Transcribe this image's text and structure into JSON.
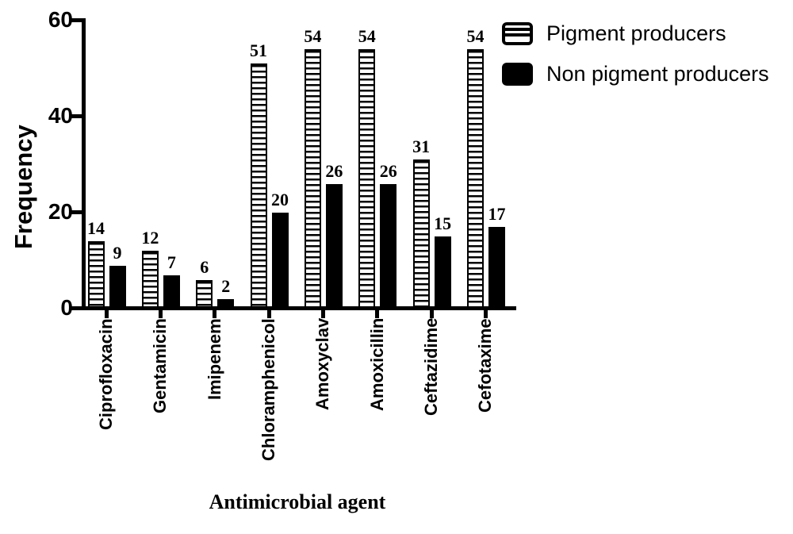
{
  "chart_data": {
    "type": "bar",
    "title": "",
    "xlabel": "Antimicrobial agent",
    "ylabel": "Frequency",
    "ylim": [
      0,
      60
    ],
    "yticks": [
      0,
      20,
      40,
      60
    ],
    "grid": false,
    "legend_position": "top-right",
    "bar_value_labels": true,
    "categories": [
      "Ciprofloxacin",
      "Gentamicin",
      "Imipenem",
      "Chloramphenicol",
      "Amoxyclav",
      "Amoxicillin",
      "Ceftazidime",
      "Cefotaxime"
    ],
    "series": [
      {
        "name": "Pigment producers",
        "pattern": "horizontal-stripes",
        "fill": "#ffffff",
        "stroke": "#000000",
        "values": [
          14,
          12,
          6,
          51,
          54,
          54,
          31,
          54
        ]
      },
      {
        "name": "Non pigment producers",
        "pattern": "solid",
        "fill": "#000000",
        "stroke": "#000000",
        "values": [
          9,
          7,
          2,
          20,
          26,
          26,
          15,
          17
        ]
      }
    ],
    "colors": {
      "foreground": "#000000",
      "background": "#ffffff"
    }
  }
}
